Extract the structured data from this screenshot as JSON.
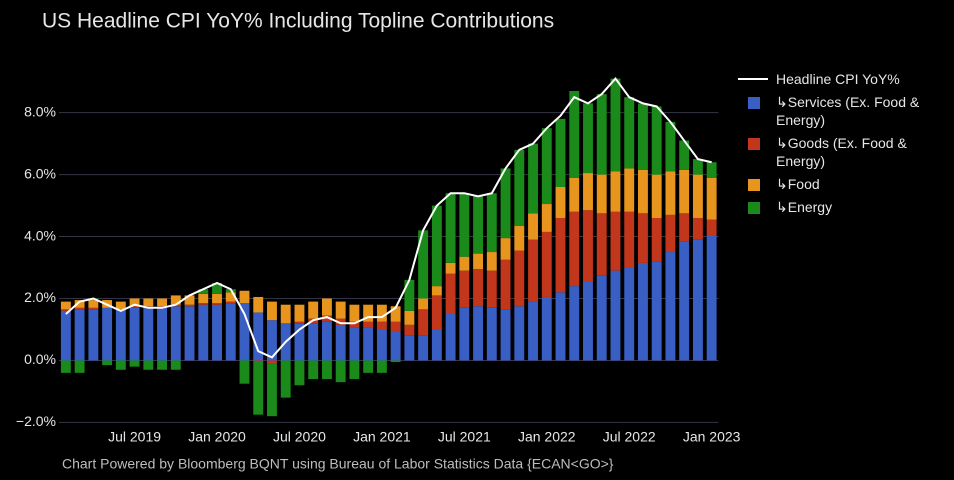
{
  "chart_data": {
    "type": "bar",
    "title": "US Headline CPI YoY% Including Topline Contributions",
    "source": "Chart Powered by Bloomberg BQNT using Bureau of Labor Statistics Data    {ECAN<GO>}",
    "categories": [
      null,
      null,
      null,
      null,
      null,
      "Jul 2019",
      null,
      null,
      null,
      null,
      null,
      "Jan 2020",
      null,
      null,
      null,
      null,
      null,
      "Jul 2020",
      null,
      null,
      null,
      null,
      null,
      "Jan 2021",
      null,
      null,
      null,
      null,
      null,
      "Jul 2021",
      null,
      null,
      null,
      null,
      null,
      "Jan 2022",
      null,
      null,
      null,
      null,
      null,
      "Jul 2022",
      null,
      null,
      null,
      null,
      null,
      "Jan 2023"
    ],
    "ylim": [
      -2.6,
      9.7
    ],
    "yticks": [
      {
        "value": -2,
        "label": "−2.0%"
      },
      {
        "value": 0,
        "label": "0.0%"
      },
      {
        "value": 2,
        "label": "2.0%"
      },
      {
        "value": 4,
        "label": "4.0%"
      },
      {
        "value": 6,
        "label": "6.0%"
      },
      {
        "value": 8,
        "label": "8.0%"
      }
    ],
    "grid": true,
    "stacked": true,
    "series": [
      {
        "name": "Headline CPI YoY%",
        "type": "line",
        "color": "#ffffff",
        "values": [
          1.5,
          1.9,
          2.0,
          1.8,
          1.6,
          1.8,
          1.7,
          1.7,
          1.8,
          2.1,
          2.3,
          2.5,
          2.3,
          1.5,
          0.3,
          0.1,
          0.6,
          1.0,
          1.3,
          1.4,
          1.2,
          1.2,
          1.4,
          1.4,
          1.7,
          2.6,
          4.2,
          5.0,
          5.4,
          5.4,
          5.3,
          5.4,
          6.2,
          6.8,
          7.0,
          7.5,
          7.9,
          8.5,
          8.3,
          8.6,
          9.1,
          8.5,
          8.3,
          8.2,
          7.7,
          7.1,
          6.5,
          6.4
        ]
      },
      {
        "name": "↳Services (Ex. Food & Energy)",
        "type": "bar",
        "color": "#3a5fc4",
        "values": [
          1.6,
          1.65,
          1.65,
          1.7,
          1.65,
          1.7,
          1.7,
          1.7,
          1.75,
          1.75,
          1.8,
          1.8,
          1.85,
          1.85,
          1.55,
          1.3,
          1.2,
          1.2,
          1.2,
          1.25,
          1.15,
          1.05,
          1.05,
          1.0,
          0.95,
          0.8,
          0.8,
          1.0,
          1.5,
          1.7,
          1.75,
          1.7,
          1.65,
          1.75,
          1.9,
          2.05,
          2.2,
          2.4,
          2.55,
          2.75,
          2.9,
          3.0,
          3.15,
          3.2,
          3.5,
          3.85,
          3.9,
          4.05
        ]
      },
      {
        "name": "↳Goods (Ex. Food & Energy)",
        "type": "bar",
        "color": "#c2361b",
        "values": [
          0.05,
          0.05,
          0.05,
          0,
          0,
          0.05,
          0.05,
          0.05,
          0.05,
          0.05,
          0.05,
          0.05,
          0.05,
          0,
          -0.05,
          -0.1,
          0,
          0.05,
          0.15,
          0.2,
          0.2,
          0.2,
          0.2,
          0.25,
          0.3,
          0.35,
          0.85,
          1.1,
          1.3,
          1.2,
          1.2,
          1.2,
          1.6,
          1.8,
          2.0,
          2.1,
          2.4,
          2.4,
          2.3,
          2.0,
          1.9,
          1.8,
          1.6,
          1.4,
          1.2,
          0.9,
          0.7,
          0.5
        ]
      },
      {
        "name": "↳Food",
        "type": "bar",
        "color": "#e8951e",
        "values": [
          0.25,
          0.25,
          0.25,
          0.25,
          0.25,
          0.25,
          0.25,
          0.25,
          0.3,
          0.3,
          0.3,
          0.3,
          0.3,
          0.4,
          0.5,
          0.6,
          0.6,
          0.55,
          0.55,
          0.55,
          0.55,
          0.55,
          0.55,
          0.55,
          0.5,
          0.45,
          0.35,
          0.3,
          0.35,
          0.45,
          0.5,
          0.6,
          0.7,
          0.8,
          0.85,
          0.9,
          1.0,
          1.1,
          1.2,
          1.25,
          1.3,
          1.4,
          1.4,
          1.4,
          1.4,
          1.4,
          1.4,
          1.35
        ]
      },
      {
        "name": "↳Energy",
        "type": "bar",
        "color": "#1a8a1a",
        "values": [
          -0.4,
          -0.4,
          0.05,
          -0.15,
          -0.3,
          -0.2,
          -0.3,
          -0.3,
          -0.3,
          0,
          0.15,
          0.35,
          0.1,
          -0.75,
          -1.7,
          -1.7,
          -1.2,
          -0.8,
          -0.6,
          -0.6,
          -0.7,
          -0.6,
          -0.4,
          -0.4,
          -0.05,
          1.0,
          2.2,
          2.6,
          2.25,
          2.05,
          1.85,
          1.9,
          2.25,
          2.45,
          2.25,
          2.45,
          2.2,
          2.8,
          2.25,
          2.6,
          3.0,
          2.3,
          2.15,
          2.2,
          1.6,
          0.95,
          0.5,
          0.5
        ]
      }
    ]
  }
}
